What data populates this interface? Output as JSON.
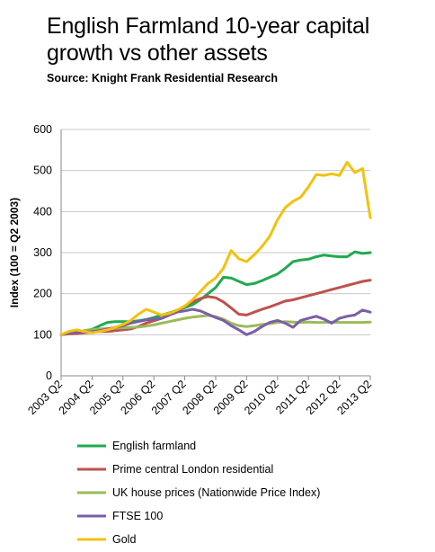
{
  "title": "English Farmland 10-year capital growth vs other assets",
  "source": "Source: Knight Frank Residential Research",
  "chart_data": {
    "type": "line",
    "ylabel": "Index (100 = Q2 2003)",
    "ylim": [
      0,
      600
    ],
    "yticks": [
      "0",
      "100",
      "200",
      "300",
      "400",
      "500",
      "600"
    ],
    "xticks": [
      "2003 Q2",
      "2004 Q2",
      "2005 Q2",
      "2006 Q2",
      "2007 Q2",
      "2008 Q2",
      "2009 Q2",
      "2010 Q2",
      "2011 Q2",
      "2012 Q2",
      "2013 Q2"
    ],
    "x": [
      2003.25,
      2003.5,
      2003.75,
      2004.0,
      2004.25,
      2004.5,
      2004.75,
      2005.0,
      2005.25,
      2005.5,
      2005.75,
      2006.0,
      2006.25,
      2006.5,
      2006.75,
      2007.0,
      2007.25,
      2007.5,
      2007.75,
      2008.0,
      2008.25,
      2008.5,
      2008.75,
      2009.0,
      2009.25,
      2009.5,
      2009.75,
      2010.0,
      2010.25,
      2010.5,
      2010.75,
      2011.0,
      2011.25,
      2011.5,
      2011.75,
      2012.0,
      2012.25,
      2012.5,
      2012.75,
      2013.0,
      2013.25
    ],
    "grid": true,
    "legend_position": "bottom",
    "series": [
      {
        "name": "English farmland",
        "color": "#1faa4f",
        "values": [
          100,
          103,
          106,
          110,
          113,
          122,
          130,
          132,
          132,
          132,
          134,
          137,
          142,
          148,
          153,
          160,
          166,
          173,
          185,
          200,
          215,
          240,
          238,
          230,
          222,
          225,
          232,
          240,
          248,
          262,
          278,
          282,
          284,
          290,
          294,
          292,
          290,
          290,
          302,
          298,
          300
        ]
      },
      {
        "name": "Prime central London residential",
        "color": "#c0504d",
        "values": [
          100,
          102,
          103,
          105,
          106,
          108,
          108,
          110,
          112,
          114,
          120,
          128,
          134,
          140,
          148,
          158,
          170,
          180,
          188,
          193,
          190,
          180,
          165,
          150,
          148,
          155,
          162,
          168,
          175,
          182,
          185,
          190,
          195,
          200,
          205,
          210,
          215,
          220,
          225,
          230,
          233
        ]
      },
      {
        "name": "UK house prices (Nationwide Price Index)",
        "color": "#9bbb59",
        "values": [
          100,
          104,
          107,
          110,
          112,
          114,
          115,
          116,
          117,
          118,
          119,
          121,
          124,
          128,
          132,
          136,
          140,
          143,
          145,
          147,
          144,
          138,
          128,
          122,
          120,
          122,
          125,
          127,
          130,
          132,
          131,
          130,
          131,
          130,
          130,
          131,
          130,
          130,
          130,
          130,
          131
        ]
      },
      {
        "name": "FTSE 100",
        "color": "#7a5ea8",
        "values": [
          100,
          104,
          106,
          107,
          108,
          110,
          114,
          118,
          122,
          128,
          132,
          136,
          138,
          140,
          148,
          155,
          158,
          162,
          158,
          150,
          142,
          135,
          122,
          112,
          100,
          108,
          120,
          130,
          135,
          128,
          118,
          135,
          140,
          145,
          138,
          128,
          140,
          145,
          148,
          160,
          155
        ]
      },
      {
        "name": "Gold",
        "color": "#f4c20d",
        "values": [
          100,
          108,
          112,
          108,
          105,
          108,
          112,
          118,
          125,
          135,
          150,
          162,
          155,
          148,
          152,
          160,
          170,
          185,
          205,
          225,
          238,
          262,
          305,
          285,
          278,
          295,
          315,
          340,
          380,
          410,
          425,
          435,
          460,
          490,
          488,
          492,
          488,
          520,
          495,
          505,
          385
        ]
      }
    ]
  }
}
